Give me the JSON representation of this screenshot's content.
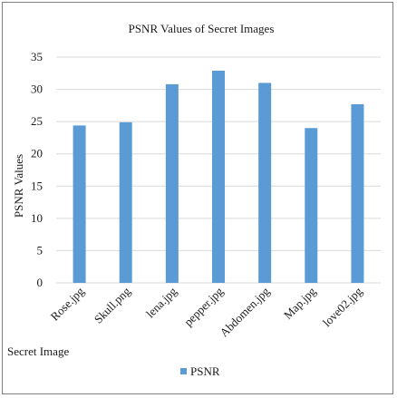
{
  "chart_data": {
    "type": "bar",
    "title": "PSNR Values of Secret Images",
    "xlabel": "Secret Image",
    "ylabel": "PSNR Values",
    "categories": [
      "Rose.jpg",
      "Skull.png",
      "lena.jpg",
      "pepper.jpg",
      "Abdomen.jpg",
      "Map.jpg",
      "love02.jpg"
    ],
    "series": [
      {
        "name": "PSNR",
        "values": [
          24.4,
          24.9,
          30.8,
          32.9,
          31.0,
          24.0,
          27.7
        ]
      }
    ],
    "ylim": [
      0,
      35
    ],
    "yticks": [
      "0",
      "5",
      "10",
      "15",
      "20",
      "25",
      "30",
      "35"
    ],
    "grid": true,
    "legend": "bottom",
    "colors": {
      "bar": "#5b9bd5",
      "grid": "#d9d9d9"
    }
  }
}
